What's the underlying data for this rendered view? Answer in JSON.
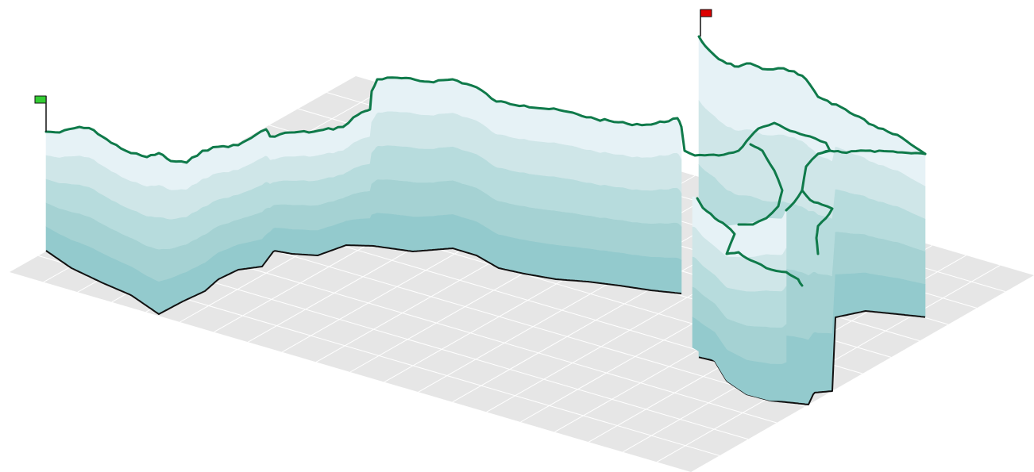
{
  "scene": {
    "kind": "3d-elevation-profile",
    "start_flag": {
      "color": "#33cc33",
      "name": "start-flag"
    },
    "end_flag": {
      "color": "#dd0000",
      "name": "end-flag"
    },
    "track_color": "#0f7a4a",
    "outline_color": "#111111",
    "floor_color": "#e6e6e6",
    "grid_color": "#ffffff",
    "band_colors": [
      "#e6f2f6",
      "#cfe6e8",
      "#b7dcdd",
      "#a5d2d3",
      "#93cacd"
    ]
  }
}
